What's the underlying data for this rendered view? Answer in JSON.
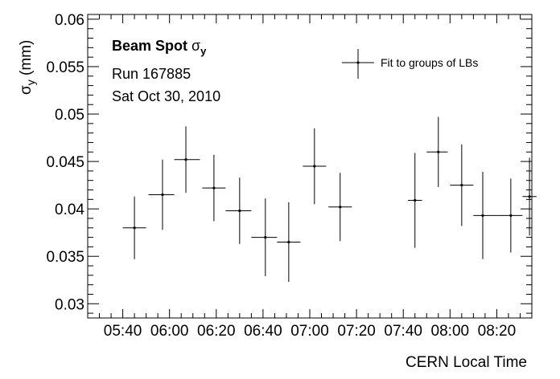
{
  "chart_data": {
    "type": "scatter",
    "title": "",
    "annotation": {
      "line1_bold": "Beam Spot",
      "line1_symbol": "σ",
      "line1_sub": "y",
      "line2": "Run 167885",
      "line3": "Sat Oct 30, 2010"
    },
    "xlabel": "CERN Local Time",
    "ylabel": {
      "symbol": "σ",
      "sub": "y",
      "unit": "(mm)"
    },
    "xlim_minutes": [
      325,
      515
    ],
    "ylim": [
      0.0285,
      0.0605
    ],
    "x_ticks": [
      {
        "value": 340,
        "label": "05:40"
      },
      {
        "value": 360,
        "label": "06:00"
      },
      {
        "value": 380,
        "label": "06:20"
      },
      {
        "value": 400,
        "label": "06:40"
      },
      {
        "value": 420,
        "label": "07:00"
      },
      {
        "value": 440,
        "label": "07:20"
      },
      {
        "value": 460,
        "label": "07:40"
      },
      {
        "value": 480,
        "label": "08:00"
      },
      {
        "value": 500,
        "label": "08:20"
      }
    ],
    "y_ticks": [
      {
        "value": 0.03,
        "label": "0.03"
      },
      {
        "value": 0.035,
        "label": "0.035"
      },
      {
        "value": 0.04,
        "label": "0.04"
      },
      {
        "value": 0.045,
        "label": "0.045"
      },
      {
        "value": 0.05,
        "label": "0.05"
      },
      {
        "value": 0.055,
        "label": "0.055"
      },
      {
        "value": 0.06,
        "label": "0.06"
      }
    ],
    "legend": {
      "position": "top-right",
      "label": "Fit to groups of LBs"
    },
    "series": [
      {
        "name": "Fit to groups of LBs",
        "points": [
          {
            "x": "05:45",
            "xmin": "05:40",
            "xmax": "05:50",
            "y": 0.038,
            "yerr": 0.0033
          },
          {
            "x": "05:57",
            "xmin": "05:51",
            "xmax": "06:02",
            "y": 0.0415,
            "yerr": 0.0037
          },
          {
            "x": "06:07",
            "xmin": "06:02",
            "xmax": "06:13",
            "y": 0.0452,
            "yerr": 0.0035
          },
          {
            "x": "06:19",
            "xmin": "06:14",
            "xmax": "06:24",
            "y": 0.0422,
            "yerr": 0.0035
          },
          {
            "x": "06:30",
            "xmin": "06:24",
            "xmax": "06:35",
            "y": 0.0398,
            "yerr": 0.0035
          },
          {
            "x": "06:41",
            "xmin": "06:35",
            "xmax": "06:46",
            "y": 0.037,
            "yerr": 0.0041
          },
          {
            "x": "06:51",
            "xmin": "06:46",
            "xmax": "06:56",
            "y": 0.0365,
            "yerr": 0.0042
          },
          {
            "x": "07:02",
            "xmin": "06:57",
            "xmax": "07:07",
            "y": 0.0445,
            "yerr": 0.004
          },
          {
            "x": "07:13",
            "xmin": "07:08",
            "xmax": "07:18",
            "y": 0.0402,
            "yerr": 0.0036
          },
          {
            "x": "07:45",
            "xmin": "07:42",
            "xmax": "07:48",
            "y": 0.0409,
            "yerr": 0.005
          },
          {
            "x": "07:55",
            "xmin": "07:50",
            "xmax": "07:59",
            "y": 0.046,
            "yerr": 0.0037
          },
          {
            "x": "08:05",
            "xmin": "08:00",
            "xmax": "08:10",
            "y": 0.0425,
            "yerr": 0.0043
          },
          {
            "x": "08:14",
            "xmin": "08:10",
            "xmax": "08:20",
            "y": 0.0393,
            "yerr": 0.0046
          },
          {
            "x": "08:26",
            "xmin": "08:20",
            "xmax": "08:31",
            "y": 0.0393,
            "yerr": 0.0039
          },
          {
            "x": "08:34",
            "xmin": "08:31",
            "xmax": "08:37",
            "y": 0.0413,
            "yerr": 0.0041
          }
        ]
      }
    ],
    "grid": false
  }
}
